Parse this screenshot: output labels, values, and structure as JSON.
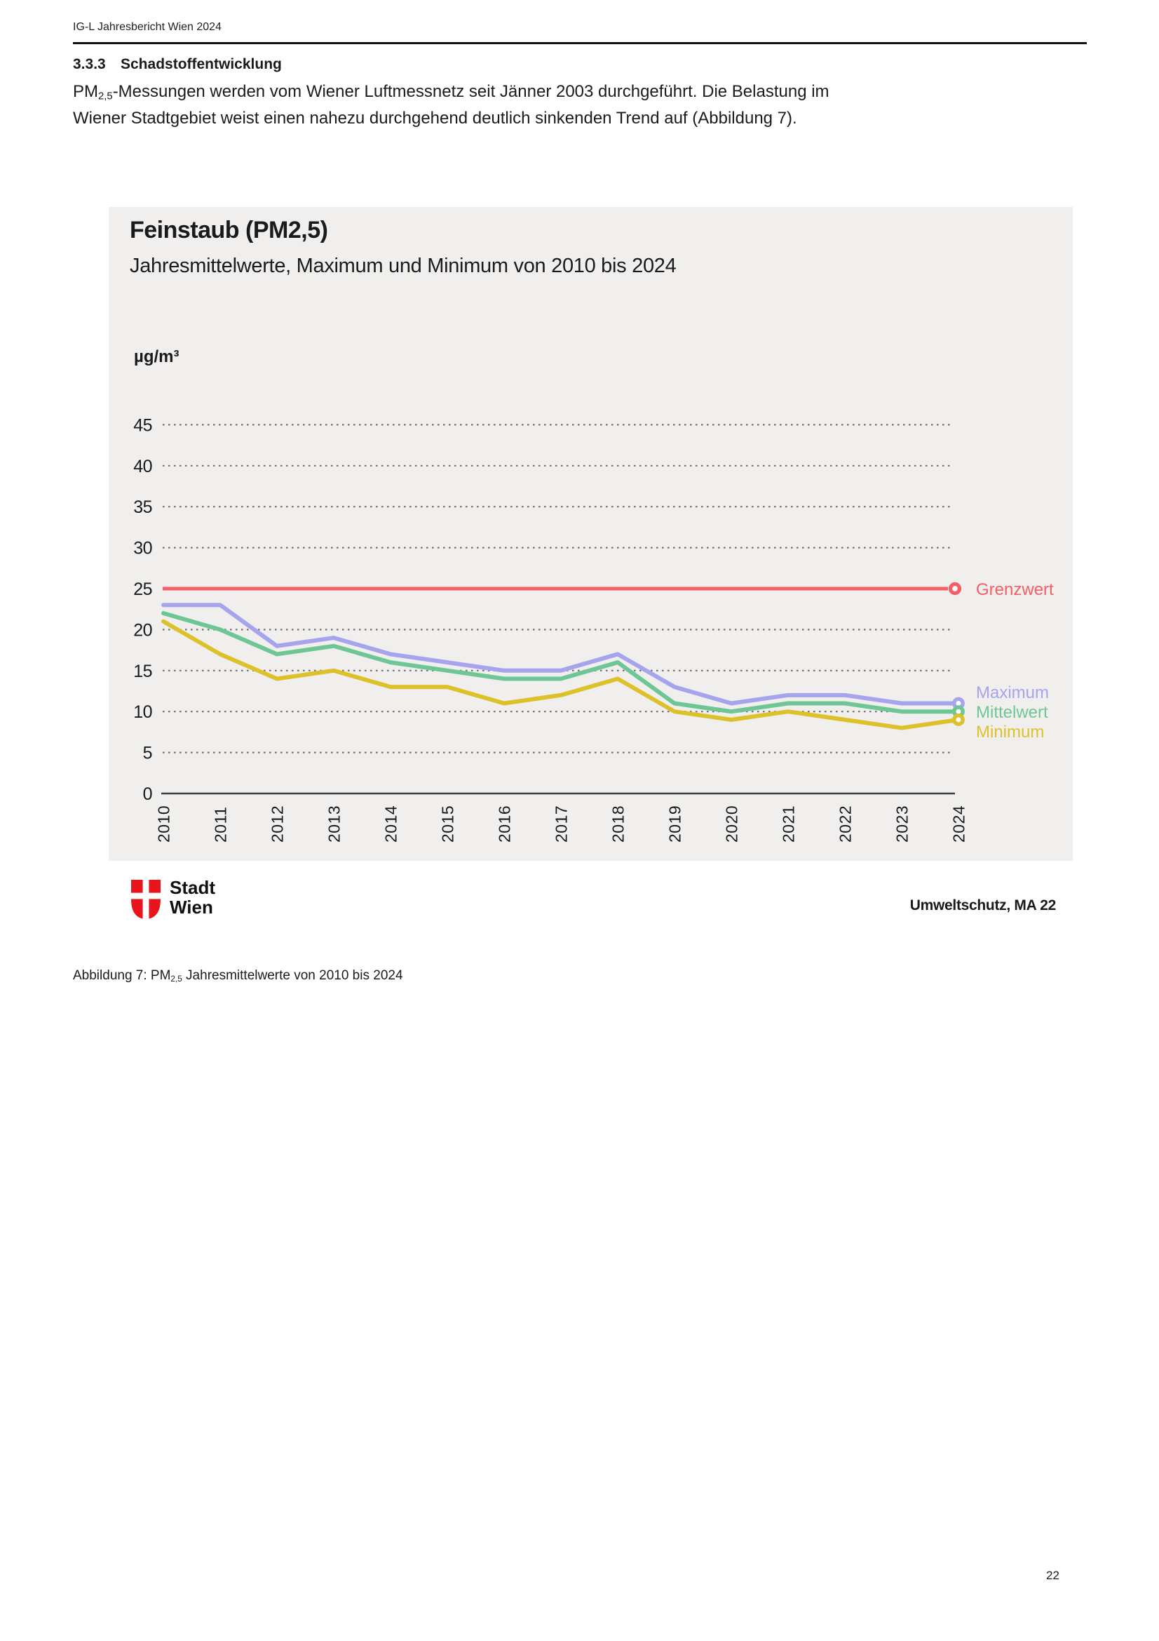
{
  "page": {
    "header": "IG-L Jahresbericht Wien 2024",
    "section_number": "3.3.3",
    "section_title": "Schadstoffentwicklung",
    "body": {
      "pm_prefix": "PM",
      "pm_sub": "2,5",
      "line1_rest": "-Messungen werden vom Wiener Luftmessnetz seit Jänner 2003 durchgeführt. Die Belastung im",
      "line2": "Wiener Stadtgebiet weist einen nahezu durchgehend deutlich sinkenden Trend auf (Abbildung 7)."
    },
    "caption": {
      "prefix": "Abbildung 7: PM",
      "sub": "2,5",
      "suffix": " Jahresmittelwerte von 2010 bis 2024"
    },
    "page_number": "22"
  },
  "figure": {
    "logo": {
      "line1": "Stadt",
      "line2": "Wien"
    },
    "source": "Umweltschutz, MA 22"
  },
  "colors": {
    "panel_bg": "#f0efee",
    "grid_dots": "#6e6e6e",
    "axis": "#3d3d3d",
    "text": "#1a1a1a",
    "logo_red": "#e8151d"
  },
  "chart_data": {
    "type": "line",
    "title": "Feinstaub (PM2,5)",
    "subtitle": "Jahresmittelwerte, Maximum und Minimum von 2010 bis 2024",
    "ylabel": "µg/m³",
    "xlabel": "",
    "ylim": [
      0,
      45
    ],
    "ytick_step": 5,
    "grid": "horizontal-dotted",
    "legend_position": "right",
    "categories": [
      "2010",
      "2011",
      "2012",
      "2013",
      "2014",
      "2015",
      "2016",
      "2017",
      "2018",
      "2019",
      "2020",
      "2021",
      "2022",
      "2023",
      "2024"
    ],
    "series": [
      {
        "name": "Maximum",
        "color": "#a5a4ec",
        "values": [
          23,
          23,
          18,
          19,
          17,
          16,
          15,
          15,
          17,
          13,
          11,
          12,
          12,
          11,
          11
        ]
      },
      {
        "name": "Mittelwert",
        "color": "#6fc695",
        "values": [
          22,
          20,
          17,
          18,
          16,
          15,
          14,
          14,
          16,
          11,
          10,
          11,
          11,
          10,
          10
        ]
      },
      {
        "name": "Minimum",
        "color": "#ddc12b",
        "values": [
          21,
          17,
          14,
          15,
          13,
          13,
          11,
          12,
          14,
          10,
          9,
          10,
          9,
          8,
          9
        ]
      }
    ],
    "reference_line": {
      "name": "Grenzwert",
      "value": 25,
      "color": "#f45f67"
    }
  }
}
